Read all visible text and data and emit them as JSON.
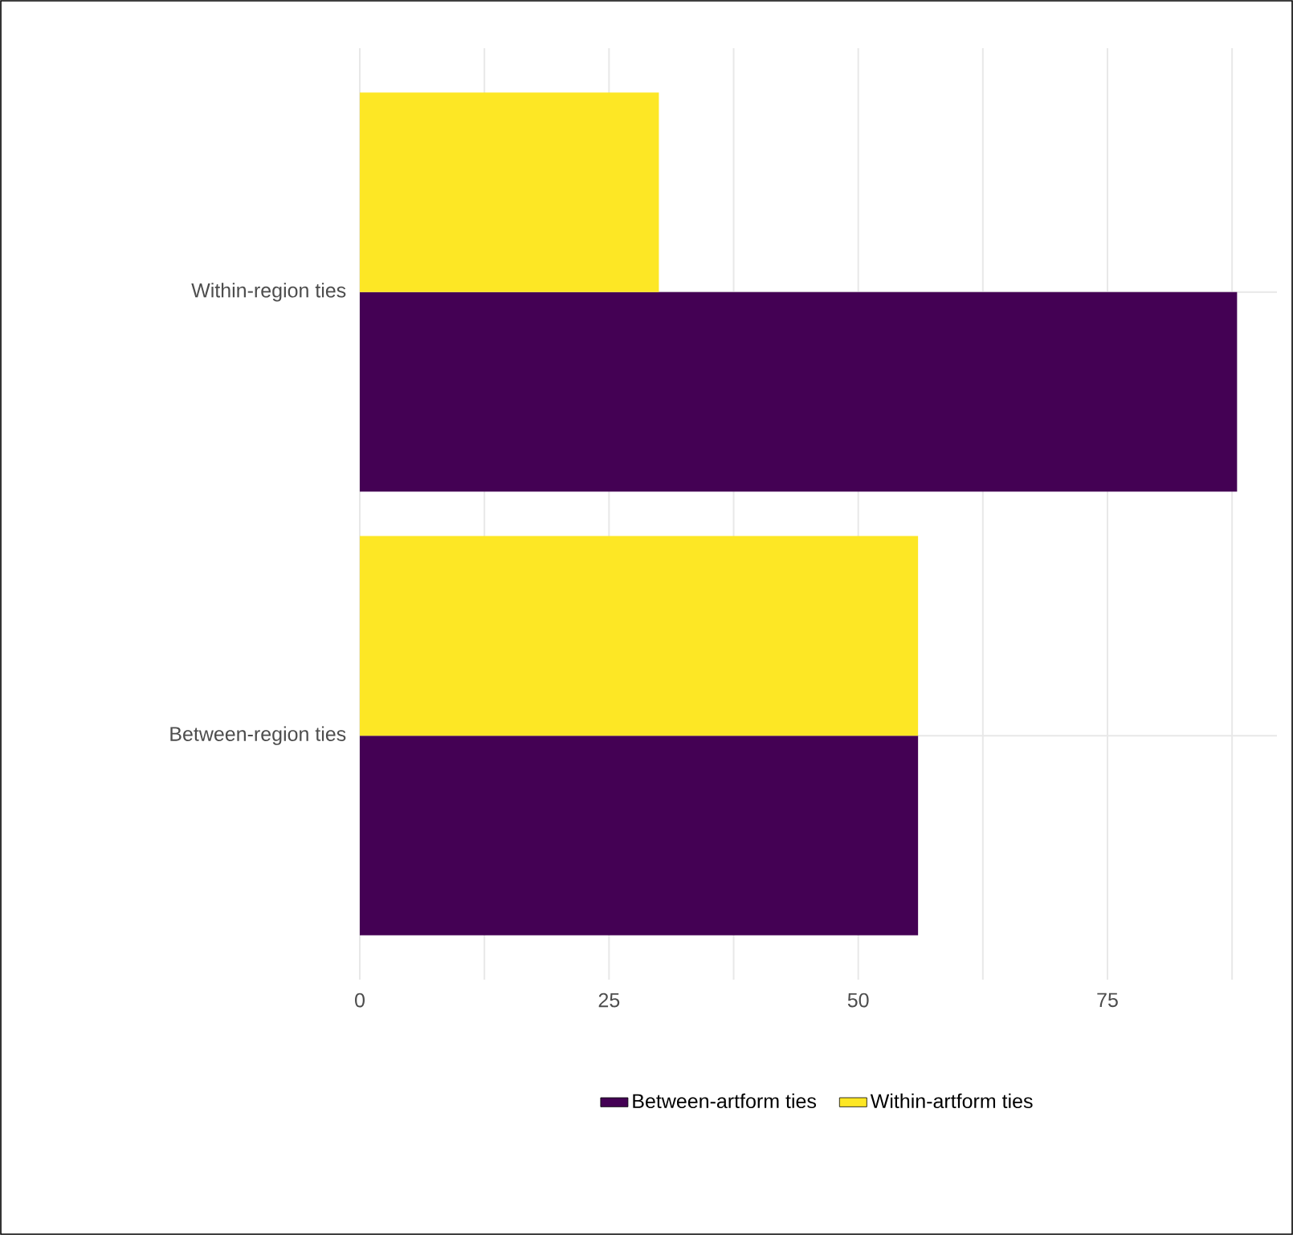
{
  "chart_data": {
    "type": "bar",
    "orientation": "horizontal",
    "categories": [
      "Within-region ties",
      "Between-region ties"
    ],
    "series": [
      {
        "name": "Between-artform ties",
        "color": "#440154",
        "values": [
          88,
          56
        ]
      },
      {
        "name": "Within-artform ties",
        "color": "#fde725",
        "values": [
          30,
          56
        ]
      }
    ],
    "xlim": [
      0,
      92
    ],
    "xticks": [
      0,
      {
        "value": 12.5,
        "label": null
      },
      25,
      {
        "value": 37.5,
        "label": null
      },
      50,
      {
        "value": 62.5,
        "label": null
      },
      75,
      {
        "value": 87.5,
        "label": null
      }
    ],
    "grid": true,
    "legend": "bottom"
  }
}
